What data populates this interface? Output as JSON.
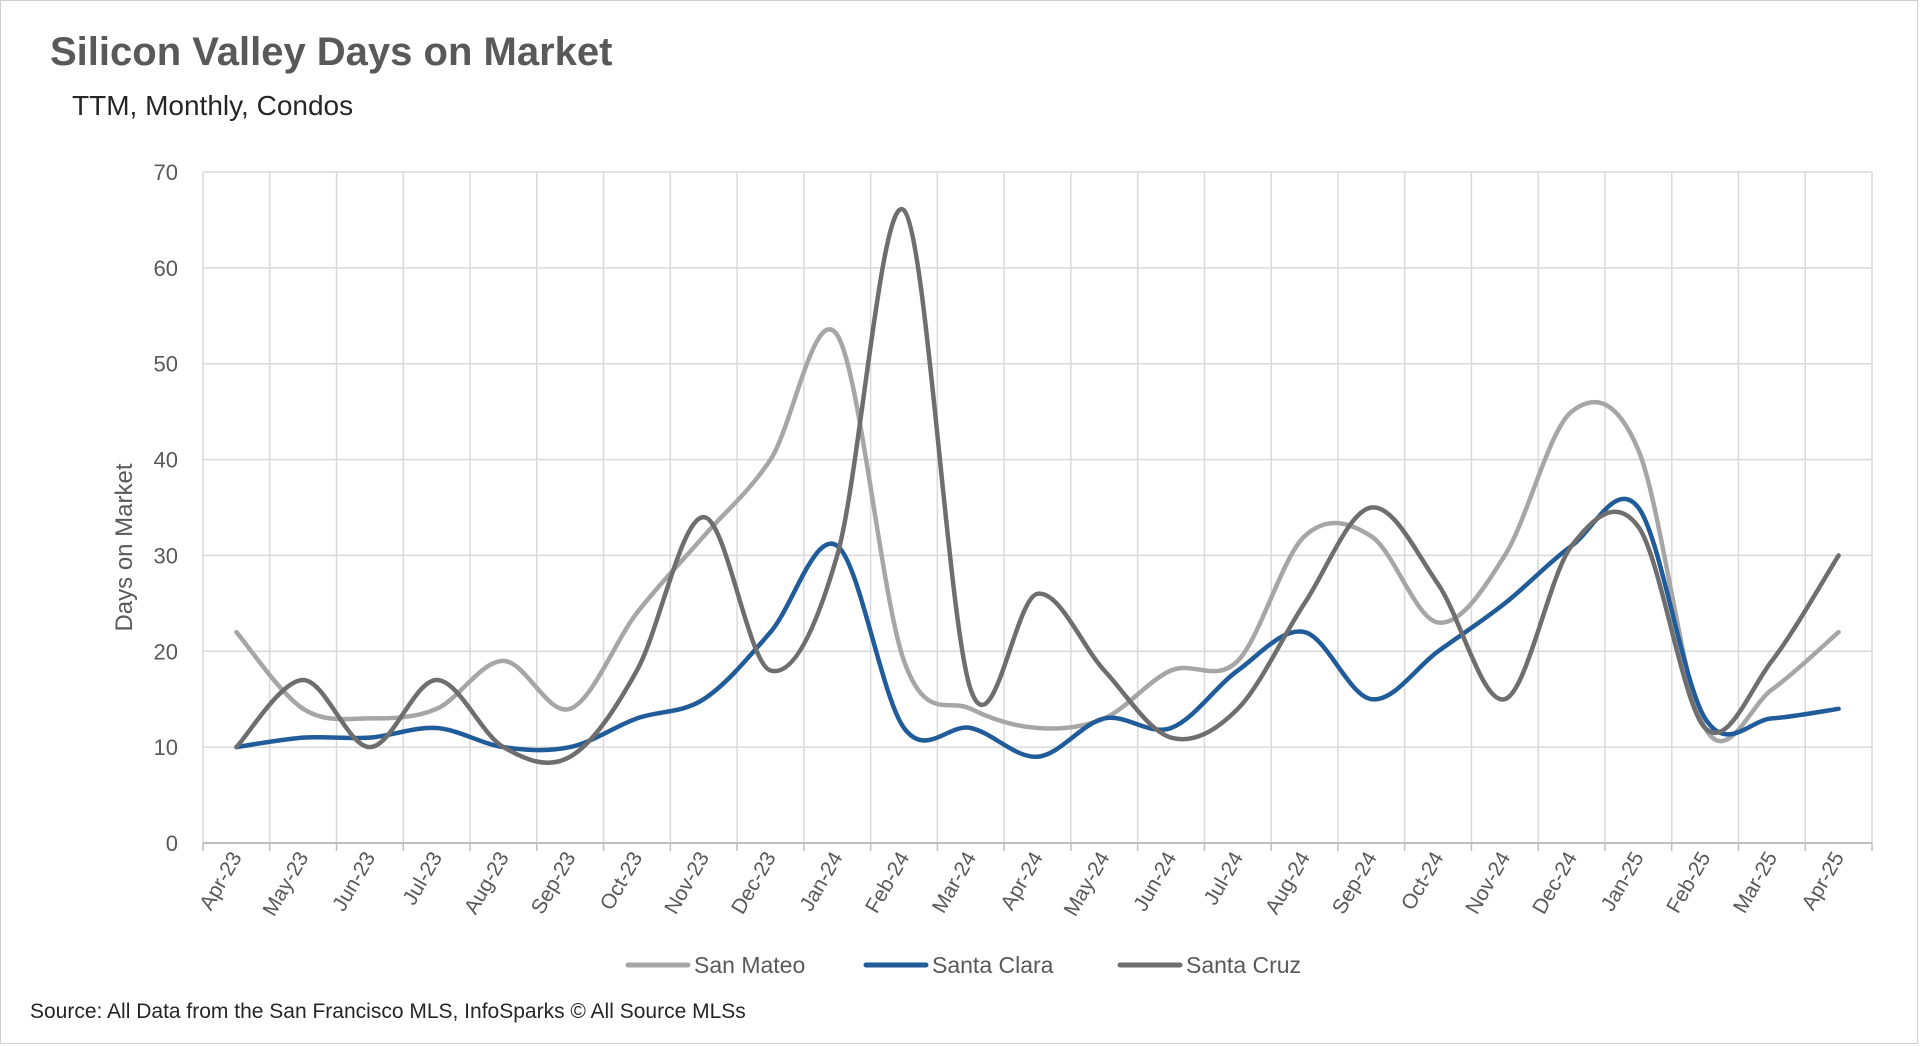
{
  "header": {
    "title": "Silicon Valley Days on Market",
    "subtitle": "TTM, Monthly, Condos"
  },
  "footer": {
    "source": "Source: All Data from the San Francisco MLS, InfoSparks © All Source MLSs"
  },
  "chart_data": {
    "type": "line",
    "title": "Silicon Valley Days on Market",
    "subtitle": "TTM, Monthly, Condos",
    "xlabel": "",
    "ylabel": "Days on Market",
    "ylim": [
      0,
      70
    ],
    "yticks": [
      0,
      10,
      20,
      30,
      40,
      50,
      60,
      70
    ],
    "grid": true,
    "legend": "bottom",
    "smooth": true,
    "categories": [
      "Apr-23",
      "May-23",
      "Jun-23",
      "Jul-23",
      "Aug-23",
      "Sep-23",
      "Oct-23",
      "Nov-23",
      "Dec-23",
      "Jan-24",
      "Feb-24",
      "Mar-24",
      "Apr-24",
      "May-24",
      "Jun-24",
      "Jul-24",
      "Aug-24",
      "Sep-24",
      "Oct-24",
      "Nov-24",
      "Dec-24",
      "Jan-25",
      "Feb-25",
      "Mar-25",
      "Apr-25"
    ],
    "series": [
      {
        "name": "San Mateo",
        "color": "#a6a6a6",
        "values": [
          22,
          14,
          13,
          14,
          19,
          14,
          24,
          32,
          40,
          53,
          19,
          14,
          12,
          13,
          18,
          19,
          32,
          32,
          23,
          30,
          45,
          41,
          12,
          16,
          22
        ]
      },
      {
        "name": "Santa Clara",
        "color": "#1f5c99",
        "values": [
          10,
          11,
          11,
          12,
          10,
          10,
          13,
          15,
          22,
          31,
          12,
          12,
          9,
          13,
          12,
          18,
          22,
          15,
          20,
          25,
          31,
          35,
          13,
          13,
          14
        ]
      },
      {
        "name": "Santa Cruz",
        "color": "#6e6e6e",
        "values": [
          10,
          17,
          10,
          17,
          10,
          9,
          18,
          34,
          18,
          30,
          66,
          16,
          26,
          18,
          11,
          14,
          25,
          35,
          27,
          15,
          31,
          33,
          12,
          19,
          30
        ]
      }
    ]
  }
}
